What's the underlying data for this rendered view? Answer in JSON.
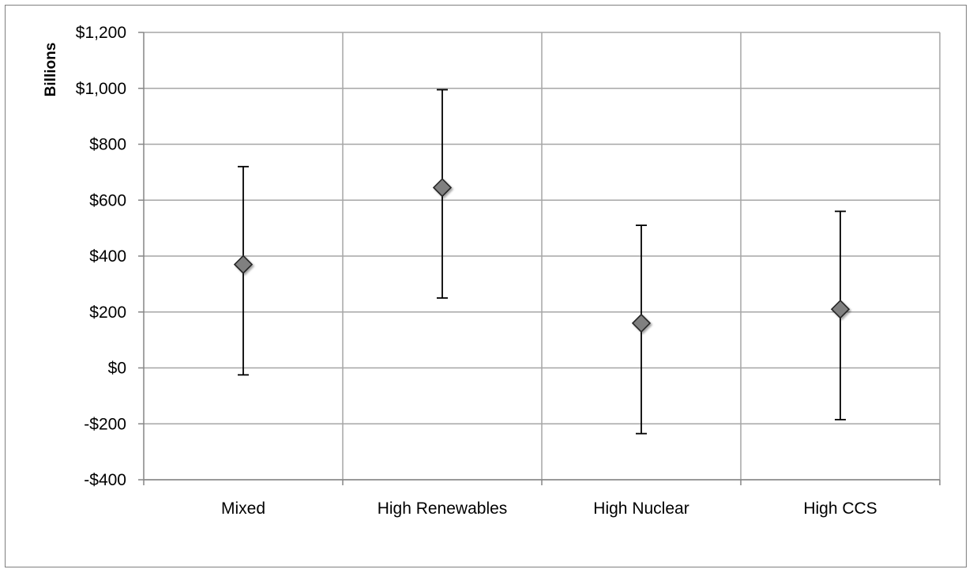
{
  "chart_data": {
    "type": "scatter",
    "title": "",
    "xlabel": "",
    "ylabel": "Billions",
    "ylim": [
      -400,
      1200
    ],
    "y_ticks": [
      -400,
      -200,
      0,
      200,
      400,
      600,
      800,
      1000,
      1200
    ],
    "y_tick_labels": [
      "-$400",
      "-$200",
      "$0",
      "$200",
      "$400",
      "$600",
      "$800",
      "$1,000",
      "$1,200"
    ],
    "categories": [
      "Mixed",
      "High Renewables",
      "High Nuclear",
      "High CCS"
    ],
    "series": [
      {
        "values": [
          370,
          645,
          160,
          210
        ],
        "error_low": [
          -25,
          250,
          -235,
          -185
        ],
        "error_high": [
          720,
          995,
          510,
          560
        ],
        "marker": "diamond",
        "color": "#808080"
      }
    ],
    "grid": true,
    "legend": "none",
    "colors": {
      "grid": "#a6a6a6",
      "marker_fill": "#808080",
      "marker_stroke": "#262626",
      "error_bar": "#000000"
    }
  }
}
